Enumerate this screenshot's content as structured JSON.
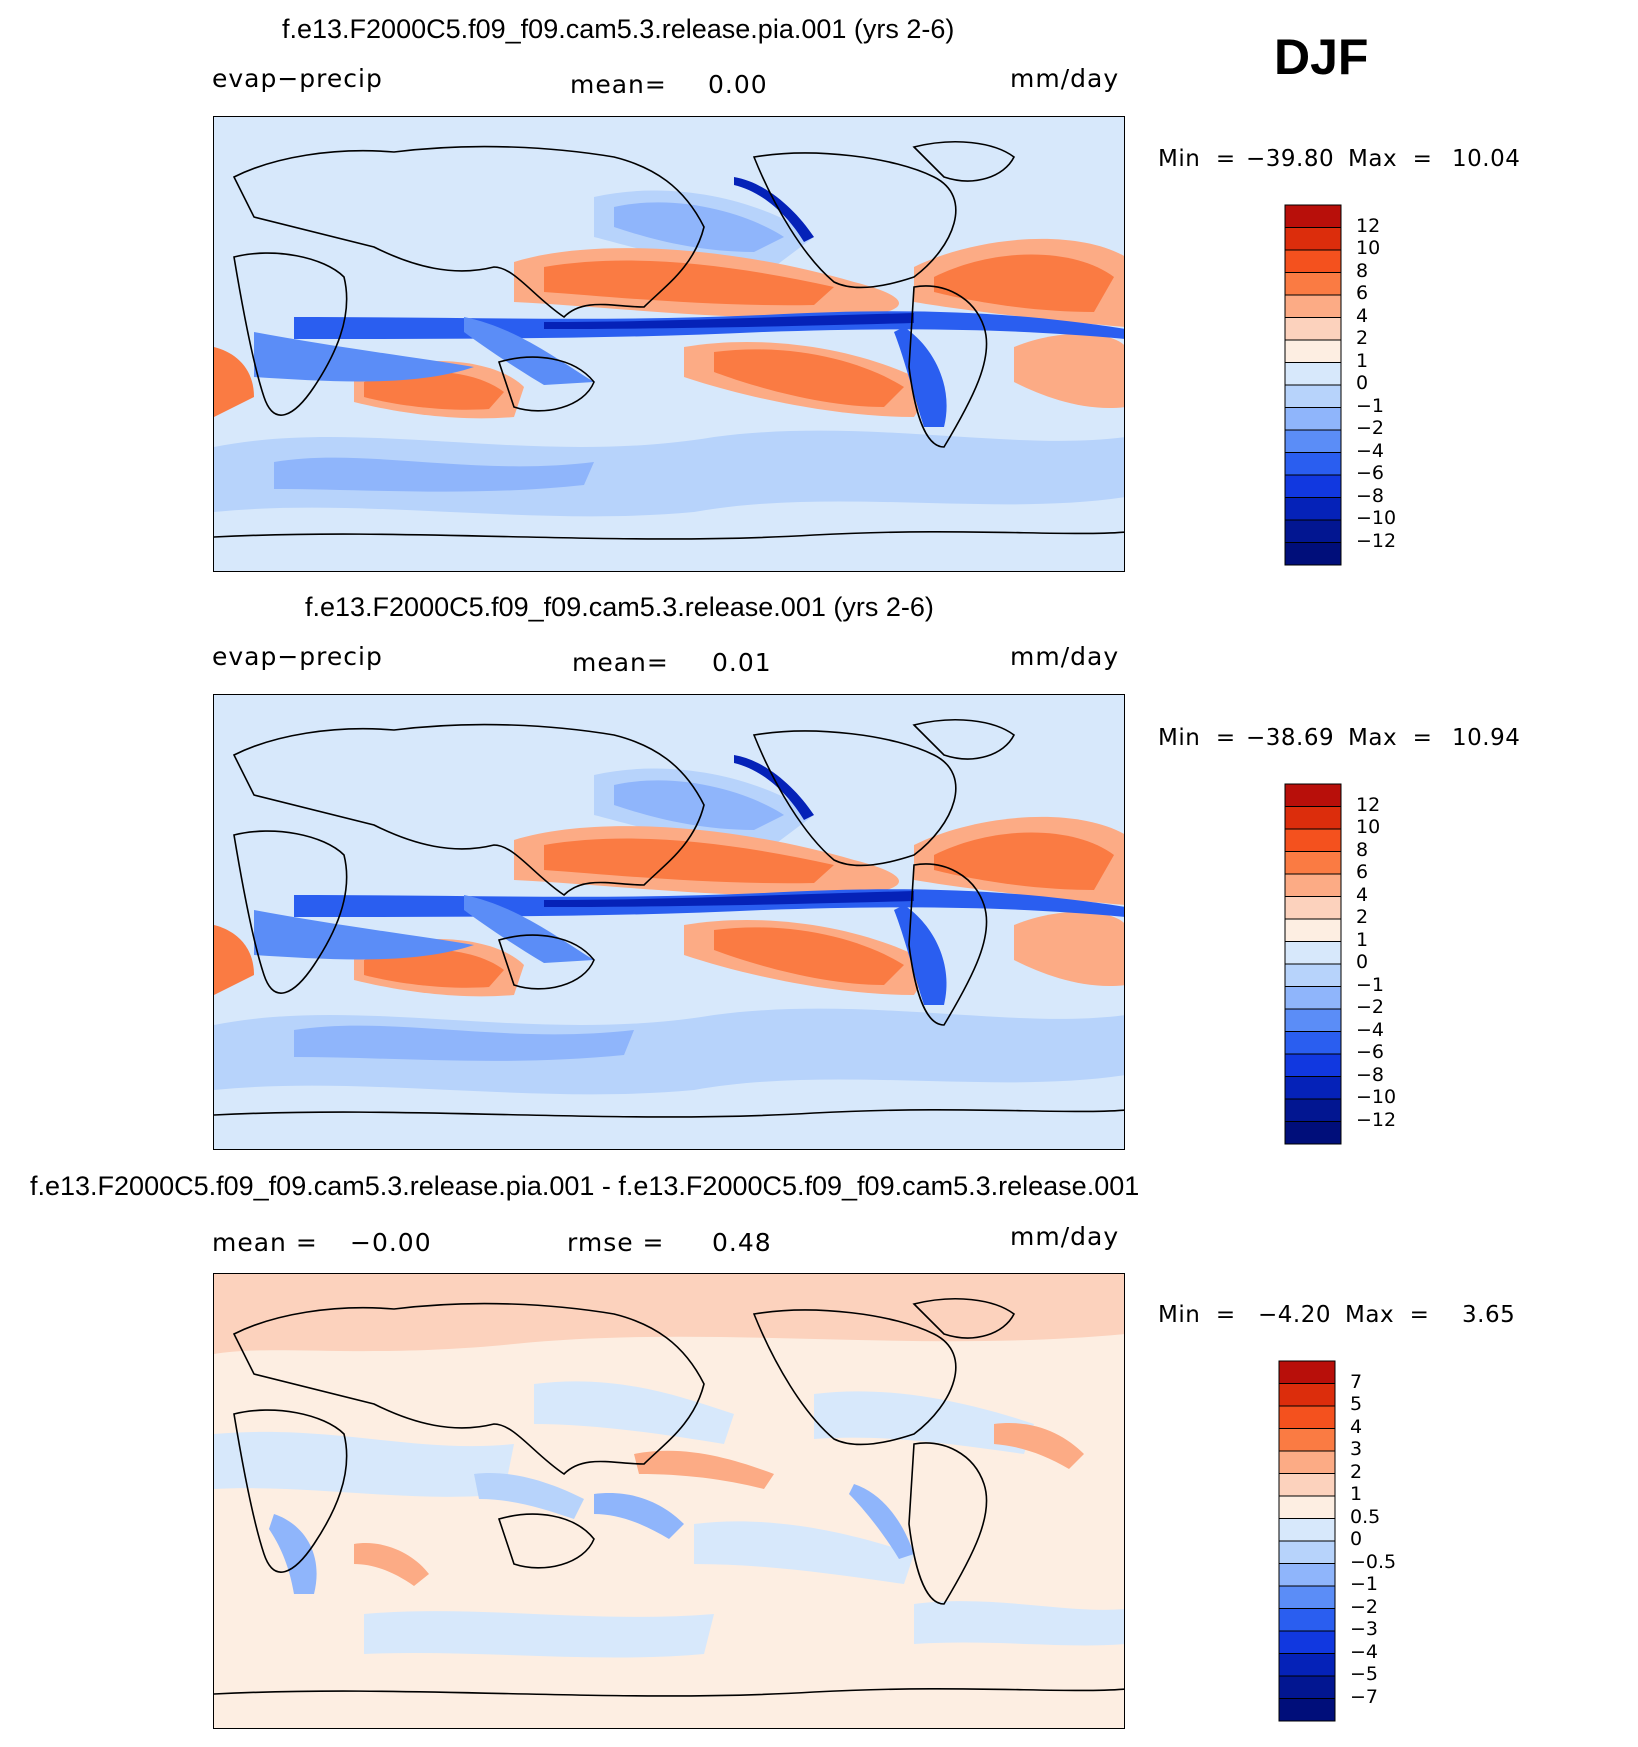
{
  "season": "DJF",
  "panels": [
    {
      "title": "f.e13.F2000C5.f09_f09.cam5.3.release.pia.001 (yrs 2-6)",
      "left_label": "evap−precip",
      "mean_label": "mean=",
      "mean_value": "0.00",
      "units": "mm/day",
      "min_label": "Min  =",
      "min_value": "−39.80",
      "max_label": "Max  =",
      "max_value": "10.04",
      "levels": [
        "12",
        "10",
        "8",
        "6",
        "4",
        "2",
        "1",
        "0",
        "−1",
        "−2",
        "−4",
        "−6",
        "−8",
        "−10",
        "−12"
      ]
    },
    {
      "title": "f.e13.F2000C5.f09_f09.cam5.3.release.001 (yrs 2-6)",
      "left_label": "evap−precip",
      "mean_label": "mean=",
      "mean_value": "0.01",
      "units": "mm/day",
      "min_label": "Min  =",
      "min_value": "−38.69",
      "max_label": "Max  =",
      "max_value": "10.94",
      "levels": [
        "12",
        "10",
        "8",
        "6",
        "4",
        "2",
        "1",
        "0",
        "−1",
        "−2",
        "−4",
        "−6",
        "−8",
        "−10",
        "−12"
      ]
    },
    {
      "title": "f.e13.F2000C5.f09_f09.cam5.3.release.pia.001 - f.e13.F2000C5.f09_f09.cam5.3.release.001",
      "mean_label": "mean =",
      "mean_value": "−0.00",
      "rmse_label": "rmse =",
      "rmse_value": "0.48",
      "units": "mm/day",
      "min_label": "Min  =",
      "min_value": "−4.20",
      "max_label": "Max  =",
      "max_value": "3.65",
      "levels": [
        "7",
        "5",
        "4",
        "3",
        "2",
        "1",
        "0.5",
        "0",
        "−0.5",
        "−1",
        "−2",
        "−3",
        "−4",
        "−5",
        "−7"
      ]
    }
  ],
  "colorbar_colors": [
    "#b80f0a",
    "#dc2d0c",
    "#f4511e",
    "#fa7b43",
    "#fcab85",
    "#fcd2bd",
    "#fdeee2",
    "#d7e8fb",
    "#b7d3fb",
    "#8fb5fb",
    "#5b8df7",
    "#2a5ef0",
    "#1138e0",
    "#0522b8",
    "#021691",
    "#000e7a"
  ]
}
